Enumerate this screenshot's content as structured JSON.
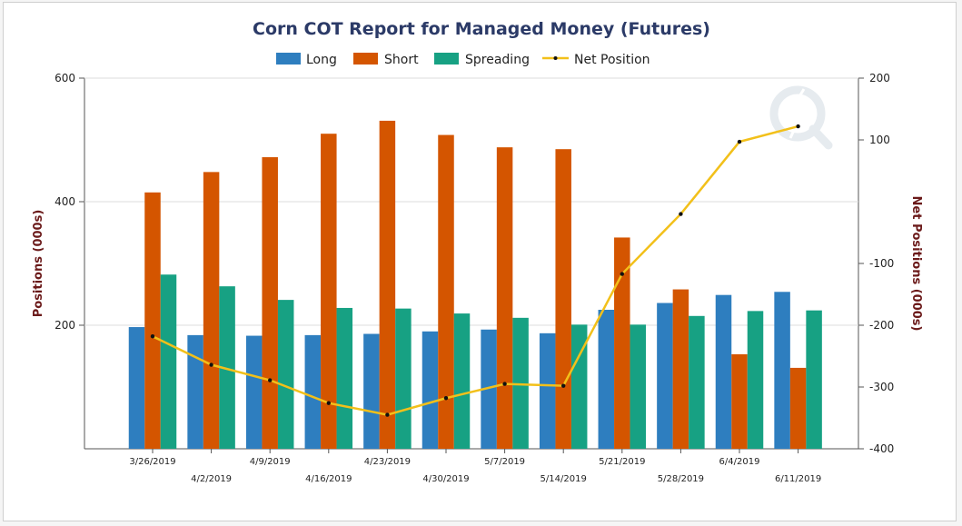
{
  "chart_data": {
    "type": "bar",
    "title": "Corn COT Report for Managed Money (Futures)",
    "ylabel": "Positions (000s)",
    "y2label": "Net Positions (000s)",
    "ylim": [
      0,
      600
    ],
    "y2lim": [
      -400,
      200
    ],
    "yticks": [
      "200",
      "400",
      "600"
    ],
    "y2ticks": [
      "-400",
      "-300",
      "-200",
      "-100",
      "100",
      "200"
    ],
    "categories": [
      "3/26/2019",
      "4/2/2019",
      "4/9/2019",
      "4/16/2019",
      "4/23/2019",
      "4/30/2019",
      "5/7/2019",
      "5/14/2019",
      "5/21/2019",
      "5/28/2019",
      "6/4/2019",
      "6/11/2019"
    ],
    "series": [
      {
        "name": "Long",
        "type": "bar",
        "axis": "left",
        "color": "#2e7ebf",
        "values": [
          197,
          184,
          183,
          184,
          186,
          190,
          193,
          187,
          225,
          236,
          249,
          254
        ]
      },
      {
        "name": "Short",
        "type": "bar",
        "axis": "left",
        "color": "#d45500",
        "values": [
          415,
          448,
          472,
          510,
          531,
          508,
          488,
          485,
          342,
          258,
          153,
          131
        ]
      },
      {
        "name": "Spreading",
        "type": "bar",
        "axis": "left",
        "color": "#17a183",
        "values": [
          282,
          263,
          241,
          228,
          227,
          219,
          212,
          201,
          201,
          215,
          223,
          224
        ]
      },
      {
        "name": "Net Position",
        "type": "line",
        "axis": "right",
        "color": "#f2c01a",
        "values": [
          -218,
          -264,
          -289,
          -326,
          -345,
          -318,
          -295,
          -298,
          -117,
          -20,
          97,
          122
        ]
      }
    ],
    "legend_position": "top-center"
  }
}
